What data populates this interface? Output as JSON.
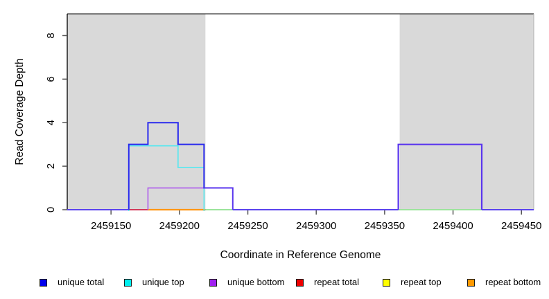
{
  "chart_data": {
    "type": "line",
    "subtype": "step-coverage",
    "title": "",
    "xlabel": "Coordinate in Reference Genome",
    "ylabel": "Read Coverage Depth",
    "xlim": [
      2459118,
      2459459
    ],
    "ylim": [
      0,
      9
    ],
    "x_ticks": [
      2459150,
      2459200,
      2459250,
      2459300,
      2459350,
      2459400,
      2459450
    ],
    "y_ticks": [
      0,
      2,
      4,
      6,
      8
    ],
    "grid": false,
    "legend_position": "bottom",
    "shaded_band_color": "#d9d9d9",
    "shaded_regions": [
      {
        "from": 2459118,
        "to": 2459219
      },
      {
        "from": 2459361,
        "to": 2459459
      }
    ],
    "series": [
      {
        "name": "unique total",
        "color": "#0000EE",
        "steps": [
          [
            2459118,
            0
          ],
          [
            2459163,
            3
          ],
          [
            2459177,
            4
          ],
          [
            2459199,
            3
          ],
          [
            2459218,
            1
          ],
          [
            2459239,
            0
          ],
          [
            2459360,
            3
          ],
          [
            2459421,
            0
          ],
          [
            2459459,
            0
          ]
        ]
      },
      {
        "name": "unique top",
        "color": "#00EEEE",
        "steps": [
          [
            2459118,
            0
          ],
          [
            2459163,
            3
          ],
          [
            2459199,
            2
          ],
          [
            2459218,
            0
          ],
          [
            2459459,
            0
          ]
        ]
      },
      {
        "name": "unique bottom",
        "color": "#A020F0",
        "steps": [
          [
            2459118,
            0
          ],
          [
            2459177,
            1
          ],
          [
            2459239,
            0
          ],
          [
            2459459,
            0
          ]
        ]
      },
      {
        "name": "repeat total",
        "color": "#EE0000",
        "steps": [
          [
            2459118,
            0
          ],
          [
            2459459,
            0
          ]
        ]
      },
      {
        "name": "repeat top",
        "color": "#FFFF00",
        "steps": [
          [
            2459118,
            0
          ],
          [
            2459459,
            0
          ]
        ]
      },
      {
        "name": "repeat bottom",
        "color": "#FF9900",
        "steps": [
          [
            2459118,
            0
          ],
          [
            2459459,
            0
          ]
        ]
      }
    ],
    "render": {
      "paths": [
        {
          "color": "#5b43ee",
          "width": 2,
          "dy": 0,
          "points": [
            [
              2459118,
              0
            ],
            [
              2459459,
              0
            ]
          ]
        },
        {
          "color": "#d23b5a",
          "width": 2,
          "dy": 0,
          "points": [
            [
              2459163,
              0
            ],
            [
              2459177,
              0
            ]
          ]
        },
        {
          "color": "#ff9614",
          "width": 2.2,
          "dy": 0,
          "points": [
            [
              2459177,
              0
            ],
            [
              2459219,
              0
            ]
          ]
        },
        {
          "color": "#9ce49c",
          "width": 2,
          "dy": 0,
          "points": [
            [
              2459219,
              0
            ],
            [
              2459239,
              0
            ]
          ]
        },
        {
          "color": "#9ce49c",
          "width": 2,
          "dy": 0,
          "points": [
            [
              2459360,
              0
            ],
            [
              2459421,
              0
            ]
          ]
        },
        {
          "color": "#55e8f0",
          "width": 1.6,
          "dy": 2,
          "points": [
            [
              2459163,
              0
            ],
            [
              2459163,
              3
            ],
            [
              2459199,
              3
            ],
            [
              2459199,
              2
            ],
            [
              2459218,
              2
            ],
            [
              2459218,
              0
            ]
          ]
        },
        {
          "color": "#ae5cec",
          "width": 1.6,
          "dy": 0,
          "points": [
            [
              2459177,
              0
            ],
            [
              2459177,
              1
            ],
            [
              2459239,
              1
            ]
          ]
        },
        {
          "color": "#2a2aee",
          "width": 2,
          "dy": 0,
          "points": [
            [
              2459163,
              0
            ],
            [
              2459163,
              3
            ],
            [
              2459177,
              3
            ],
            [
              2459177,
              4
            ],
            [
              2459199,
              4
            ],
            [
              2459199,
              3
            ],
            [
              2459218,
              3
            ],
            [
              2459218,
              1
            ],
            [
              2459239,
              1
            ]
          ]
        },
        {
          "color": "#5a36ee",
          "width": 2,
          "dy": 0,
          "points": [
            [
              2459218,
              1
            ],
            [
              2459239,
              1
            ],
            [
              2459239,
              0
            ]
          ]
        },
        {
          "color": "#5a36ee",
          "width": 2.2,
          "dy": 0,
          "points": [
            [
              2459360,
              0
            ],
            [
              2459360,
              3
            ],
            [
              2459421,
              3
            ],
            [
              2459421,
              0
            ]
          ]
        }
      ]
    }
  }
}
